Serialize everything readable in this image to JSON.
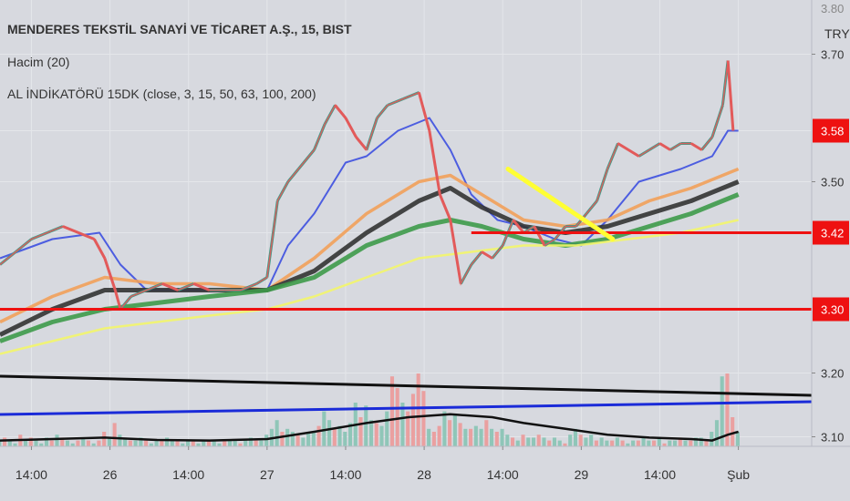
{
  "legend": {
    "title": "MENDERES TEKSTİL SANAYİ VE TİCARET A.Ş., 15, BIST",
    "volume": "Hacim (20)",
    "indicator": "AL İNDİKATÖRÜ 15DK (close, 3, 15, 50, 63, 100, 200)"
  },
  "colors": {
    "background": "#d7d9df",
    "candle_up": "#3a9e8a",
    "candle_down": "#e05a5a",
    "ema_fast": "#e45a5a",
    "ema_blue": "#3d4fe0",
    "ema_orange": "#f2a05a",
    "ema_black": "#333333",
    "ema_green": "#3e9a4a",
    "ema_yellow": "#f3f56a",
    "level_line": "#ee1111",
    "drawn_line": "#ffff33"
  },
  "chart_data": {
    "type": "line",
    "currency": "TRY",
    "y_axis": {
      "ylim": [
        3.085,
        3.785
      ],
      "ticks": [
        3.1,
        3.2,
        3.3,
        3.42,
        3.5,
        3.58,
        3.7
      ],
      "tick_labels": [
        "3.10",
        "3.20",
        "3.30",
        "3.42",
        "3.50",
        "3.58",
        "3.70"
      ],
      "top_cut_label": "3.80"
    },
    "x_axis": {
      "xlim": [
        0,
        155
      ],
      "tick_positions": [
        6,
        21,
        36,
        51,
        66,
        81,
        96,
        111,
        126,
        141
      ],
      "tick_labels": [
        "14:00",
        "26",
        "14:00",
        "27",
        "14:00",
        "28",
        "14:00",
        "29",
        "14:00",
        "Şub"
      ]
    },
    "price_tags": [
      {
        "value": 3.58,
        "label": "3.58"
      },
      {
        "value": 3.42,
        "label": "3.42"
      },
      {
        "value": 3.3,
        "label": "3.30"
      }
    ],
    "horizontal_levels": [
      {
        "value": 3.42,
        "x_start": 90
      },
      {
        "value": 3.3,
        "x_start": 0
      }
    ],
    "trend_line": {
      "x": [
        97,
        117
      ],
      "y": [
        3.52,
        3.41
      ]
    },
    "close": [
      [
        0,
        3.37
      ],
      [
        3,
        3.39
      ],
      [
        6,
        3.41
      ],
      [
        9,
        3.42
      ],
      [
        12,
        3.43
      ],
      [
        15,
        3.42
      ],
      [
        18,
        3.41
      ],
      [
        20,
        3.38
      ],
      [
        22,
        3.33
      ],
      [
        23,
        3.3
      ],
      [
        25,
        3.32
      ],
      [
        28,
        3.33
      ],
      [
        31,
        3.34
      ],
      [
        34,
        3.33
      ],
      [
        37,
        3.34
      ],
      [
        40,
        3.33
      ],
      [
        43,
        3.33
      ],
      [
        46,
        3.33
      ],
      [
        49,
        3.34
      ],
      [
        51,
        3.35
      ],
      [
        53,
        3.47
      ],
      [
        55,
        3.5
      ],
      [
        57,
        3.52
      ],
      [
        60,
        3.55
      ],
      [
        62,
        3.59
      ],
      [
        64,
        3.62
      ],
      [
        66,
        3.6
      ],
      [
        68,
        3.57
      ],
      [
        70,
        3.55
      ],
      [
        72,
        3.6
      ],
      [
        74,
        3.62
      ],
      [
        77,
        3.63
      ],
      [
        80,
        3.64
      ],
      [
        82,
        3.58
      ],
      [
        84,
        3.48
      ],
      [
        86,
        3.44
      ],
      [
        88,
        3.34
      ],
      [
        90,
        3.37
      ],
      [
        92,
        3.39
      ],
      [
        94,
        3.38
      ],
      [
        96,
        3.4
      ],
      [
        98,
        3.44
      ],
      [
        100,
        3.42
      ],
      [
        102,
        3.43
      ],
      [
        104,
        3.4
      ],
      [
        106,
        3.41
      ],
      [
        108,
        3.43
      ],
      [
        110,
        3.43
      ],
      [
        112,
        3.45
      ],
      [
        114,
        3.47
      ],
      [
        116,
        3.52
      ],
      [
        118,
        3.56
      ],
      [
        120,
        3.55
      ],
      [
        122,
        3.54
      ],
      [
        124,
        3.55
      ],
      [
        126,
        3.56
      ],
      [
        128,
        3.55
      ],
      [
        130,
        3.56
      ],
      [
        132,
        3.56
      ],
      [
        134,
        3.55
      ],
      [
        136,
        3.57
      ],
      [
        138,
        3.62
      ],
      [
        139,
        3.69
      ],
      [
        140,
        3.58
      ]
    ],
    "series": [
      {
        "color": "#3d4fe0",
        "points": [
          [
            0,
            3.38
          ],
          [
            10,
            3.41
          ],
          [
            19,
            3.42
          ],
          [
            23,
            3.37
          ],
          [
            28,
            3.33
          ],
          [
            40,
            3.33
          ],
          [
            51,
            3.33
          ],
          [
            55,
            3.4
          ],
          [
            60,
            3.45
          ],
          [
            66,
            3.53
          ],
          [
            70,
            3.54
          ],
          [
            76,
            3.58
          ],
          [
            82,
            3.6
          ],
          [
            86,
            3.55
          ],
          [
            90,
            3.48
          ],
          [
            95,
            3.44
          ],
          [
            100,
            3.43
          ],
          [
            106,
            3.41
          ],
          [
            111,
            3.4
          ],
          [
            116,
            3.44
          ],
          [
            122,
            3.5
          ],
          [
            130,
            3.52
          ],
          [
            136,
            3.54
          ],
          [
            139,
            3.58
          ],
          [
            141,
            3.58
          ]
        ]
      },
      {
        "color": "#f2a05a",
        "points": [
          [
            0,
            3.28
          ],
          [
            10,
            3.32
          ],
          [
            20,
            3.35
          ],
          [
            30,
            3.34
          ],
          [
            40,
            3.34
          ],
          [
            51,
            3.33
          ],
          [
            60,
            3.38
          ],
          [
            70,
            3.45
          ],
          [
            80,
            3.5
          ],
          [
            86,
            3.51
          ],
          [
            92,
            3.48
          ],
          [
            100,
            3.44
          ],
          [
            108,
            3.43
          ],
          [
            116,
            3.44
          ],
          [
            124,
            3.47
          ],
          [
            132,
            3.49
          ],
          [
            141,
            3.52
          ]
        ]
      },
      {
        "color": "#333333",
        "points": [
          [
            0,
            3.26
          ],
          [
            10,
            3.3
          ],
          [
            20,
            3.33
          ],
          [
            30,
            3.33
          ],
          [
            40,
            3.33
          ],
          [
            51,
            3.33
          ],
          [
            60,
            3.36
          ],
          [
            70,
            3.42
          ],
          [
            80,
            3.47
          ],
          [
            86,
            3.49
          ],
          [
            92,
            3.46
          ],
          [
            100,
            3.43
          ],
          [
            108,
            3.42
          ],
          [
            116,
            3.43
          ],
          [
            124,
            3.45
          ],
          [
            132,
            3.47
          ],
          [
            141,
            3.5
          ]
        ]
      },
      {
        "color": "#3e9a4a",
        "points": [
          [
            0,
            3.25
          ],
          [
            10,
            3.28
          ],
          [
            20,
            3.3
          ],
          [
            30,
            3.31
          ],
          [
            40,
            3.32
          ],
          [
            51,
            3.33
          ],
          [
            60,
            3.35
          ],
          [
            70,
            3.4
          ],
          [
            80,
            3.43
          ],
          [
            86,
            3.44
          ],
          [
            92,
            3.43
          ],
          [
            100,
            3.41
          ],
          [
            108,
            3.4
          ],
          [
            116,
            3.41
          ],
          [
            124,
            3.43
          ],
          [
            132,
            3.45
          ],
          [
            141,
            3.48
          ]
        ]
      },
      {
        "color": "#f3f56a",
        "points": [
          [
            0,
            3.23
          ],
          [
            10,
            3.25
          ],
          [
            20,
            3.27
          ],
          [
            30,
            3.28
          ],
          [
            40,
            3.29
          ],
          [
            51,
            3.3
          ],
          [
            60,
            3.32
          ],
          [
            70,
            3.35
          ],
          [
            80,
            3.38
          ],
          [
            90,
            3.39
          ],
          [
            100,
            3.4
          ],
          [
            110,
            3.4
          ],
          [
            120,
            3.41
          ],
          [
            130,
            3.42
          ],
          [
            141,
            3.44
          ]
        ]
      }
    ],
    "volume": {
      "values": [
        2,
        3,
        2,
        1,
        4,
        2,
        3,
        2,
        1,
        3,
        2,
        4,
        3,
        2,
        1,
        2,
        3,
        2,
        1,
        2,
        5,
        3,
        8,
        4,
        3,
        2,
        2,
        3,
        2,
        1,
        2,
        2,
        3,
        2,
        2,
        1,
        2,
        2,
        1,
        2,
        2,
        2,
        1,
        2,
        2,
        2,
        1,
        2,
        3,
        2,
        2,
        4,
        6,
        9,
        5,
        6,
        5,
        4,
        3,
        5,
        5,
        7,
        12,
        9,
        6,
        7,
        5,
        8,
        15,
        10,
        14,
        9,
        8,
        7,
        12,
        24,
        20,
        15,
        12,
        18,
        25,
        19,
        6,
        5,
        7,
        12,
        9,
        11,
        8,
        6,
        6,
        7,
        6,
        9,
        6,
        5,
        6,
        4,
        3,
        2,
        4,
        3,
        3,
        4,
        3,
        2,
        3,
        2,
        1,
        4,
        6,
        4,
        3,
        4,
        2,
        3,
        2,
        2,
        3,
        2,
        1,
        2,
        2,
        3,
        2,
        2,
        3,
        1,
        2,
        2,
        3,
        2,
        2,
        3,
        3,
        2,
        5,
        9,
        24,
        25,
        10,
        5
      ],
      "up": [
        1,
        0,
        1,
        1,
        0,
        1,
        0,
        1,
        1,
        1,
        0,
        1,
        0,
        1,
        1,
        0,
        1,
        0,
        1,
        0,
        0,
        1,
        0,
        1,
        1,
        0,
        1,
        1,
        0,
        1,
        1,
        0,
        1,
        1,
        0,
        1,
        1,
        0,
        1,
        1,
        0,
        1,
        1,
        0,
        1,
        1,
        0,
        1,
        1,
        0,
        1,
        1,
        1,
        1,
        0,
        1,
        1,
        0,
        1,
        1,
        1,
        0,
        1,
        1,
        0,
        1,
        1,
        1,
        1,
        0,
        1,
        1,
        0,
        1,
        1,
        0,
        0,
        1,
        0,
        0,
        0,
        0,
        1,
        0,
        0,
        1,
        0,
        1,
        0,
        1,
        0,
        1,
        1,
        0,
        1,
        0,
        1,
        1,
        0,
        1,
        0,
        1,
        1,
        0,
        1,
        0,
        1,
        1,
        0,
        1,
        1,
        0,
        1,
        1,
        0,
        1,
        1,
        0,
        1,
        0,
        1,
        1,
        0,
        1,
        1,
        0,
        1,
        0,
        1,
        1,
        0,
        1,
        0,
        1,
        1,
        0,
        1,
        1,
        1,
        0,
        0,
        1
      ],
      "volume_ma": [
        [
          0,
          2
        ],
        [
          10,
          2.5
        ],
        [
          20,
          3
        ],
        [
          30,
          2.2
        ],
        [
          40,
          2
        ],
        [
          51,
          2.5
        ],
        [
          60,
          5
        ],
        [
          70,
          8
        ],
        [
          78,
          10
        ],
        [
          86,
          11
        ],
        [
          94,
          10
        ],
        [
          100,
          8
        ],
        [
          108,
          6
        ],
        [
          116,
          4
        ],
        [
          124,
          3
        ],
        [
          132,
          2.5
        ],
        [
          136,
          2
        ],
        [
          139,
          4
        ],
        [
          141,
          5
        ]
      ]
    },
    "volume_lines": [
      {
        "color": "#111111",
        "points": [
          [
            0,
            3.195
          ],
          [
            155,
            3.165
          ]
        ]
      },
      {
        "color": "#1a2bd8",
        "points": [
          [
            0,
            3.135
          ],
          [
            155,
            3.155
          ]
        ]
      }
    ]
  }
}
